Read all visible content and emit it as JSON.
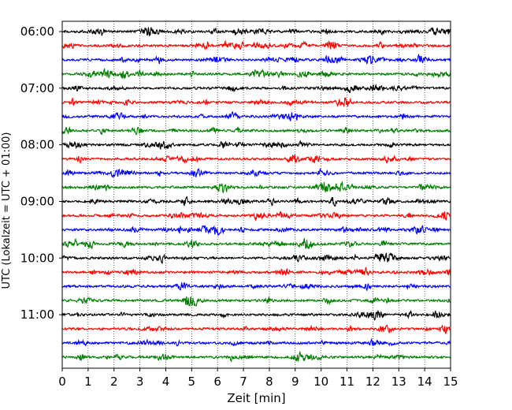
{
  "chart_data": {
    "type": "line",
    "title": "",
    "xlabel": "Zeit  [min]",
    "ylabel": "UTC (Lokalzeit = UTC + 01:00)",
    "xlim": [
      0,
      15
    ],
    "xticks": [
      0,
      1,
      2,
      3,
      4,
      5,
      6,
      7,
      8,
      9,
      10,
      11,
      12,
      13,
      14,
      15
    ],
    "xtick_labels": [
      "0",
      "1",
      "2",
      "3",
      "4",
      "5",
      "6",
      "7",
      "8",
      "9",
      "10",
      "11",
      "12",
      "13",
      "14",
      "15"
    ],
    "ytick_labels": [
      "06:00",
      "07:00",
      "08:00",
      "09:00",
      "10:00",
      "11:00"
    ],
    "grid": "vertical dotted lines at each minute",
    "trace_interval_min": 15,
    "trace_colors": [
      "#000000",
      "#ff0000",
      "#0000ff",
      "#008000"
    ],
    "traces": [
      {
        "start": "06:00",
        "color": "#000000"
      },
      {
        "start": "06:15",
        "color": "#ff0000"
      },
      {
        "start": "06:30",
        "color": "#0000ff"
      },
      {
        "start": "06:45",
        "color": "#008000"
      },
      {
        "start": "07:00",
        "color": "#000000"
      },
      {
        "start": "07:15",
        "color": "#ff0000"
      },
      {
        "start": "07:30",
        "color": "#0000ff"
      },
      {
        "start": "07:45",
        "color": "#008000"
      },
      {
        "start": "08:00",
        "color": "#000000"
      },
      {
        "start": "08:15",
        "color": "#ff0000"
      },
      {
        "start": "08:30",
        "color": "#0000ff"
      },
      {
        "start": "08:45",
        "color": "#008000"
      },
      {
        "start": "09:00",
        "color": "#000000"
      },
      {
        "start": "09:15",
        "color": "#ff0000"
      },
      {
        "start": "09:30",
        "color": "#0000ff"
      },
      {
        "start": "09:45",
        "color": "#008000"
      },
      {
        "start": "10:00",
        "color": "#000000"
      },
      {
        "start": "10:15",
        "color": "#ff0000"
      },
      {
        "start": "10:30",
        "color": "#0000ff"
      },
      {
        "start": "10:45",
        "color": "#008000"
      },
      {
        "start": "11:00",
        "color": "#000000"
      },
      {
        "start": "11:15",
        "color": "#ff0000"
      },
      {
        "start": "11:30",
        "color": "#0000ff"
      },
      {
        "start": "11:45",
        "color": "#008000"
      }
    ]
  }
}
